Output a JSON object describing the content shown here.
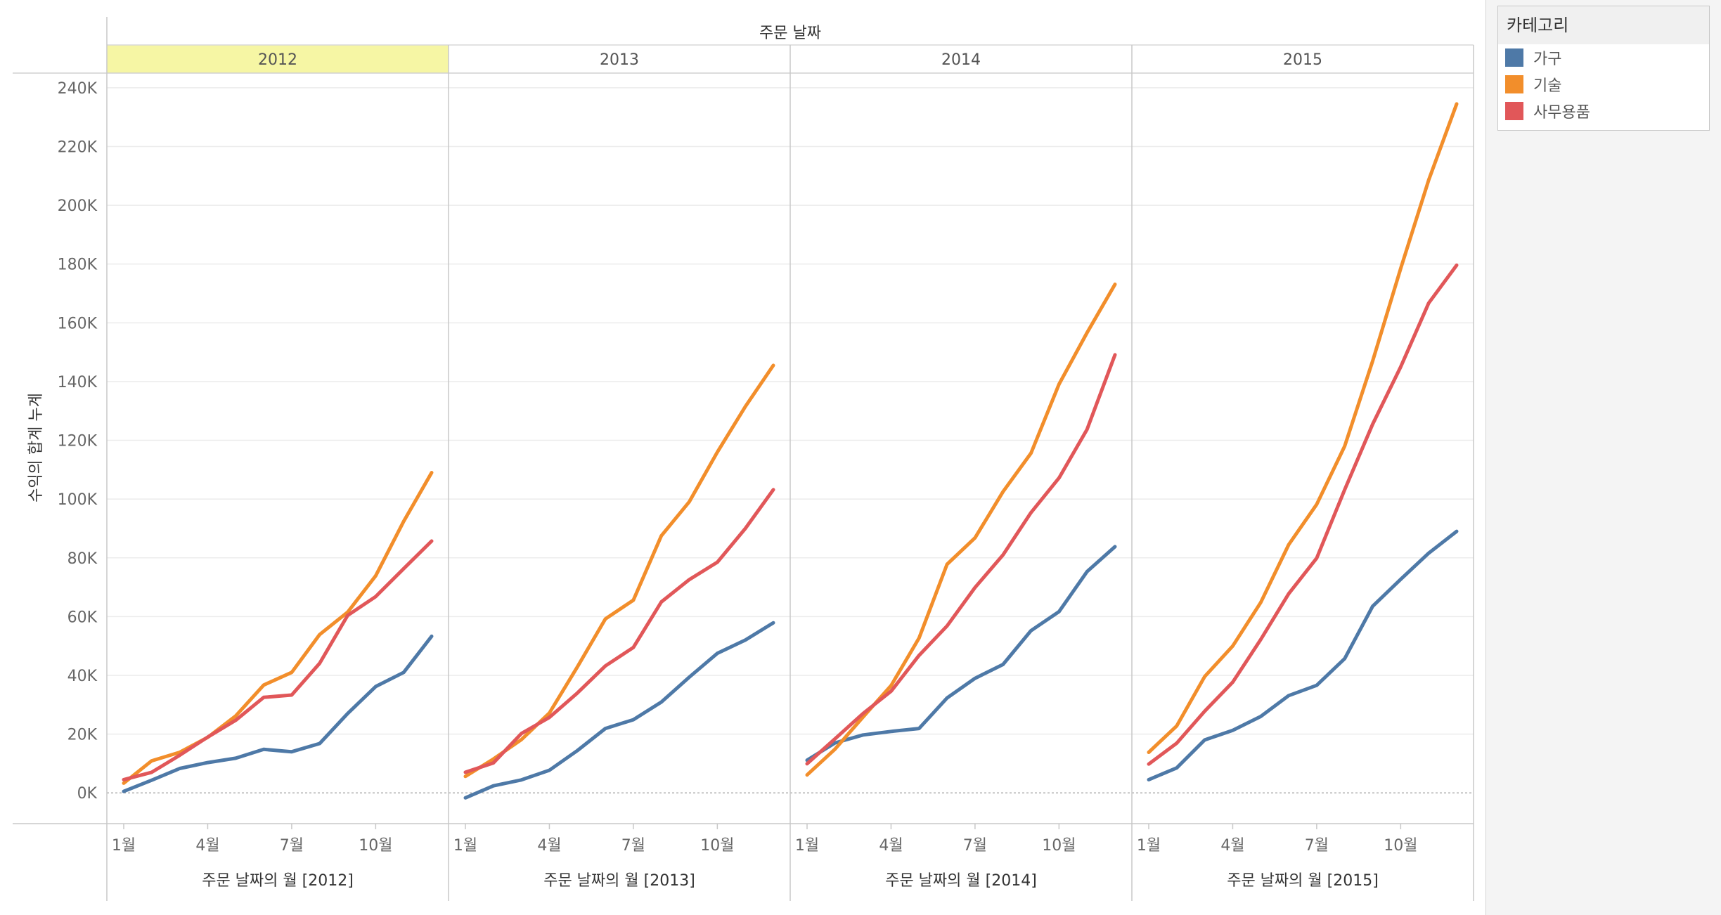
{
  "legend": {
    "title": "카테고리",
    "items": [
      {
        "label": "가구",
        "color": "#4e79a7"
      },
      {
        "label": "기술",
        "color": "#f28e2b"
      },
      {
        "label": "사무용품",
        "color": "#e15759"
      }
    ]
  },
  "chart_data": {
    "type": "line",
    "column_header_title": "주문 날짜",
    "ylabel": "수익의 합계 누계",
    "ylim": [
      -10000,
      245000
    ],
    "yticks": [
      0,
      20000,
      40000,
      60000,
      80000,
      100000,
      120000,
      140000,
      160000,
      180000,
      200000,
      220000,
      240000
    ],
    "ytick_labels": [
      "0K",
      "20K",
      "40K",
      "60K",
      "80K",
      "100K",
      "120K",
      "140K",
      "160K",
      "180K",
      "200K",
      "220K",
      "240K"
    ],
    "x": [
      1,
      2,
      3,
      4,
      5,
      6,
      7,
      8,
      9,
      10,
      11,
      12
    ],
    "xticks": [
      1,
      4,
      7,
      10
    ],
    "xtick_labels": [
      "1월",
      "4월",
      "7월",
      "10월"
    ],
    "grid": true,
    "zero_line": "dotted",
    "legend_position": "top-right",
    "highlighted_panel": "2012",
    "highlight_color": "#f6f6a4",
    "panels": [
      {
        "year": "2012",
        "xlabel": "주문 날짜의 월 [2012]",
        "series": [
          {
            "name": "가구",
            "values": [
              500,
              4300,
              8300,
              10300,
              11800,
              14800,
              14000,
              16800,
              27000,
              36200,
              41000,
              53300
            ]
          },
          {
            "name": "기술",
            "values": [
              3300,
              10900,
              13800,
              18900,
              26200,
              36700,
              41000,
              53900,
              61500,
              73900,
              92400,
              109000
            ]
          },
          {
            "name": "사무용품",
            "values": [
              4500,
              7000,
              12800,
              19000,
              24700,
              32500,
              33300,
              44100,
              60400,
              66800,
              76300,
              85700
            ]
          }
        ]
      },
      {
        "year": "2013",
        "xlabel": "주문 날짜의 월 [2013]",
        "series": [
          {
            "name": "가구",
            "values": [
              -1700,
              2400,
              4400,
              7700,
              14400,
              21900,
              24900,
              30900,
              39400,
              47500,
              52000,
              57900
            ]
          },
          {
            "name": "기술",
            "values": [
              5600,
              11500,
              18100,
              27200,
              42900,
              59200,
              65600,
              87500,
              99100,
              116000,
              131500,
              145500
            ]
          },
          {
            "name": "사무용품",
            "values": [
              7000,
              10200,
              20200,
              25700,
              34000,
              43200,
              49500,
              65000,
              72600,
              78500,
              90000,
              103200
            ]
          }
        ]
      },
      {
        "year": "2014",
        "xlabel": "주문 날짜의 월 [2014]",
        "series": [
          {
            "name": "가구",
            "values": [
              11100,
              17000,
              19700,
              20900,
              21900,
              32300,
              39000,
              43700,
              55200,
              61700,
              75300,
              83800
            ]
          },
          {
            "name": "기술",
            "values": [
              6100,
              14900,
              25800,
              36500,
              52700,
              77800,
              86800,
              102500,
              115600,
              139100,
              156600,
              173100
            ]
          },
          {
            "name": "사무용품",
            "values": [
              9900,
              18400,
              27000,
              34600,
              46800,
              56800,
              69900,
              81000,
              95400,
              107200,
              123700,
              149100
            ]
          }
        ]
      },
      {
        "year": "2015",
        "xlabel": "주문 날짜의 월 [2015]",
        "series": [
          {
            "name": "가구",
            "values": [
              4500,
              8500,
              18000,
              21300,
              26000,
              33100,
              36600,
              45700,
              63500,
              72700,
              81600,
              89000
            ]
          },
          {
            "name": "기술",
            "values": [
              13800,
              22800,
              39600,
              50000,
              64800,
              84500,
              98200,
              118000,
              147000,
              178500,
              208600,
              234500
            ]
          },
          {
            "name": "사무용품",
            "values": [
              9800,
              16900,
              27800,
              37700,
              52200,
              67800,
              79900,
              103200,
              125500,
              145000,
              166700,
              179600
            ]
          }
        ]
      }
    ]
  }
}
